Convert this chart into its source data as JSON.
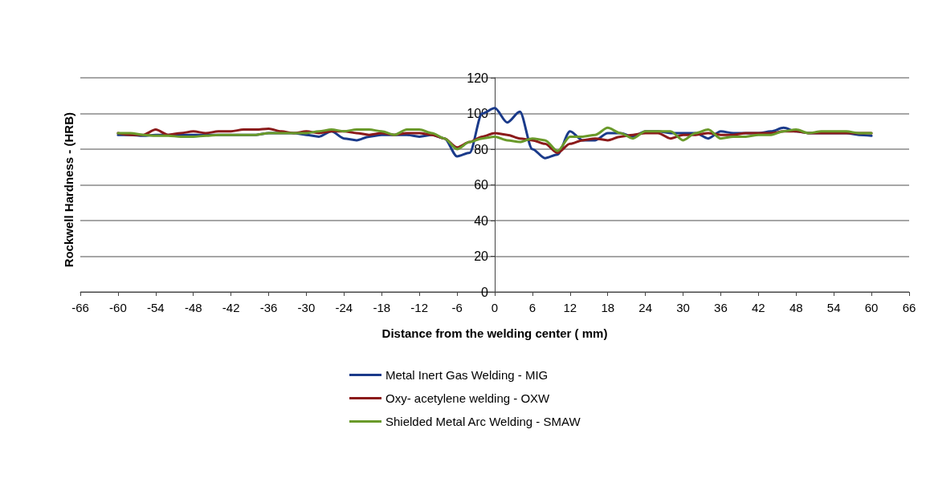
{
  "chart_data": {
    "type": "line",
    "xlabel": "Distance from the welding center ( mm)",
    "ylabel": "Rockwell Hardness - (HRB)",
    "x": [
      -60,
      -58,
      -56,
      -54,
      -52,
      -50,
      -48,
      -46,
      -44,
      -42,
      -40,
      -38,
      -36,
      -34,
      -32,
      -30,
      -28,
      -26,
      -24,
      -22,
      -20,
      -18,
      -16,
      -14,
      -12,
      -10,
      -8,
      -6,
      -4,
      -2,
      0,
      2,
      4,
      6,
      8,
      10,
      12,
      14,
      16,
      18,
      20,
      22,
      24,
      26,
      28,
      30,
      32,
      34,
      36,
      38,
      40,
      42,
      44,
      46,
      48,
      50,
      52,
      54,
      56,
      58,
      60
    ],
    "series": [
      {
        "name": "Metal Inert Gas Welding - MIG",
        "color": "#1a3a8a",
        "values": [
          88,
          88,
          87.5,
          88,
          88,
          88,
          88,
          88,
          88,
          88,
          88,
          88,
          89,
          89,
          89,
          88,
          87,
          90,
          86,
          85,
          87,
          88,
          88,
          88,
          87,
          88,
          86,
          76,
          78,
          100,
          103,
          95,
          101,
          80,
          75,
          77,
          90,
          85,
          85,
          89,
          89,
          87,
          90,
          90,
          89,
          89,
          89,
          86,
          90,
          89,
          89,
          89,
          90,
          92,
          90,
          89,
          89,
          89,
          89,
          88,
          87.5
        ]
      },
      {
        "name": "Oxy- acetylene welding - OXW",
        "color": "#8b1a1a",
        "values": [
          89,
          88,
          88,
          91,
          88,
          89,
          90,
          89,
          90,
          90,
          91,
          91,
          91.5,
          90,
          89,
          90,
          89,
          90,
          90,
          89,
          88,
          89,
          88,
          89,
          89,
          88,
          86,
          81,
          84,
          87,
          89,
          88,
          86,
          85,
          83,
          78,
          83,
          85,
          86,
          85,
          87,
          88,
          89,
          89,
          86,
          88,
          88,
          89,
          88,
          88,
          89,
          89,
          89,
          90,
          90,
          89,
          89,
          89,
          89,
          89,
          89
        ]
      },
      {
        "name": "Shielded Metal Arc Welding - SMAW",
        "color": "#6a9a2a",
        "values": [
          89,
          89,
          88,
          87.5,
          87.5,
          87,
          87,
          87.5,
          88,
          88,
          88,
          88,
          89,
          89,
          89,
          89,
          90,
          91,
          90,
          91,
          91,
          90,
          88,
          91,
          91,
          89,
          86,
          80,
          84,
          86,
          87,
          85,
          84,
          86,
          85,
          79,
          87,
          87,
          88,
          92,
          89,
          86,
          90,
          90,
          90,
          85,
          89,
          91,
          86,
          87,
          87,
          88,
          88,
          90,
          91,
          89,
          90,
          90,
          90,
          89,
          89
        ]
      }
    ],
    "xlim": [
      -66,
      66
    ],
    "xticks": [
      -66,
      -60,
      -54,
      -48,
      -42,
      -36,
      -30,
      -24,
      -18,
      -12,
      -6,
      0,
      6,
      12,
      18,
      24,
      30,
      36,
      42,
      48,
      54,
      60,
      66
    ],
    "ylim": [
      0,
      120
    ],
    "yticks": [
      0,
      20,
      40,
      60,
      80,
      100,
      120
    ],
    "grid": "y",
    "legend": "bottom",
    "marker": "none",
    "line_style": "solid"
  }
}
